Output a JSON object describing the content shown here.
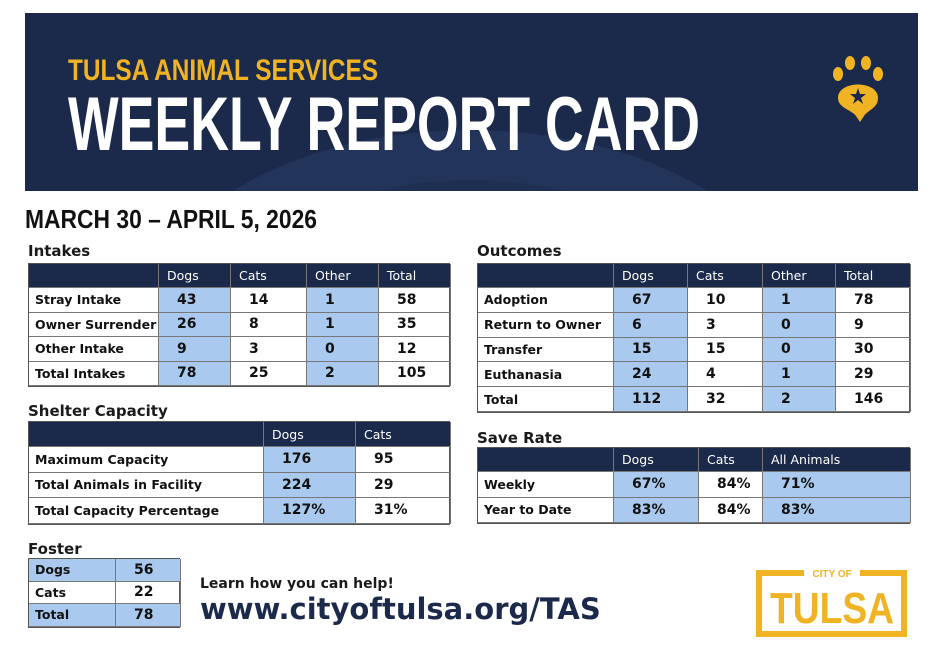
{
  "header": {
    "org": "TULSA ANIMAL SERVICES",
    "title": "WEEKLY REPORT CARD"
  },
  "date_range": "MARCH 30 – APRIL 5, 2026",
  "intakes": {
    "title": "Intakes",
    "columns": [
      "Dogs",
      "Cats",
      "Other",
      "Total"
    ],
    "rows": [
      {
        "label": "Stray Intake",
        "values": [
          43,
          14,
          1,
          58
        ]
      },
      {
        "label": "Owner Surrender",
        "values": [
          26,
          8,
          1,
          35
        ]
      },
      {
        "label": "Other Intake",
        "values": [
          9,
          3,
          0,
          12
        ]
      },
      {
        "label": "Total Intakes",
        "values": [
          78,
          25,
          2,
          105
        ]
      }
    ]
  },
  "outcomes": {
    "title": "Outcomes",
    "columns": [
      "Dogs",
      "Cats",
      "Other",
      "Total"
    ],
    "rows": [
      {
        "label": "Adoption",
        "values": [
          67,
          10,
          1,
          78
        ]
      },
      {
        "label": "Return to Owner",
        "values": [
          6,
          3,
          0,
          9
        ]
      },
      {
        "label": "Transfer",
        "values": [
          15,
          15,
          0,
          30
        ]
      },
      {
        "label": "Euthanasia",
        "values": [
          24,
          4,
          1,
          29
        ]
      },
      {
        "label": "Total",
        "values": [
          112,
          32,
          2,
          146
        ]
      }
    ]
  },
  "shelter_capacity": {
    "title": "Shelter Capacity",
    "columns": [
      "Dogs",
      "Cats"
    ],
    "rows": [
      {
        "label": "Maximum Capacity",
        "values": [
          176,
          95
        ]
      },
      {
        "label": "Total Animals in Facility",
        "values": [
          224,
          29
        ]
      },
      {
        "label": "Total Capacity Percentage",
        "values": [
          "127%",
          "31%"
        ]
      }
    ]
  },
  "save_rate": {
    "title": "Save Rate",
    "columns": [
      "Dogs",
      "Cats",
      "All Animals"
    ],
    "rows": [
      {
        "label": "Weekly",
        "values": [
          "67%",
          "84%",
          "71%"
        ]
      },
      {
        "label": "Year to Date",
        "values": [
          "83%",
          "84%",
          "83%"
        ]
      }
    ]
  },
  "foster": {
    "title": "Foster",
    "rows": [
      {
        "label": "Dogs",
        "values": [
          56
        ]
      },
      {
        "label": "Cats",
        "values": [
          22
        ]
      },
      {
        "label": "Total",
        "values": [
          78
        ]
      }
    ]
  },
  "footer": {
    "prompt": "Learn how you can help!",
    "url": "www.cityoftulsa.org/TAS",
    "logo_top": "CITY OF",
    "logo_main": "TULSA"
  }
}
